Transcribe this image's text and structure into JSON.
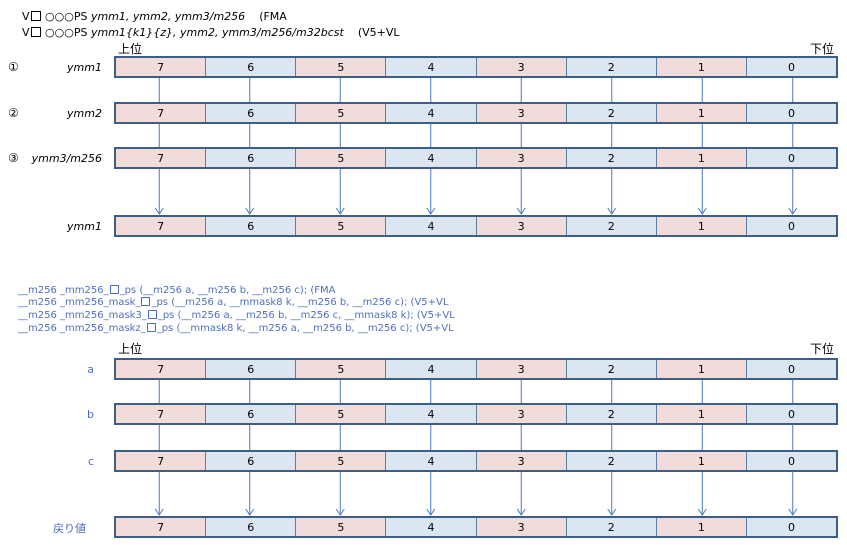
{
  "header1": {
    "prefix": "V",
    "circles": "○○○",
    "suffix": "PS",
    "operands": "ymm1, ymm2, ymm3/m256",
    "ext": "(FMA"
  },
  "header2": {
    "prefix": "V",
    "circles": "○○○",
    "suffix": "PS",
    "operands": "ymm1{k1}{z}, ymm2, ymm3/m256/m32bcst",
    "ext": "(V5+VL"
  },
  "high": "上位",
  "low": "下位",
  "cells": [
    "7",
    "6",
    "5",
    "4",
    "3",
    "2",
    "1",
    "0"
  ],
  "diagram1": {
    "rows": [
      {
        "num": "①",
        "label": "ymm1"
      },
      {
        "num": "②",
        "label": "ymm2"
      },
      {
        "num": "③",
        "label": "ymm3/m256"
      }
    ],
    "result_label": "ymm1"
  },
  "prototypes": [
    {
      "pre": "__m256  _mm256_",
      "post": "_ps  (__m256 a, __m256 b, __m256 c);   (FMA"
    },
    {
      "pre": "__m256  _mm256_mask_",
      "post": "_ps  (__m256 a, __mmask8 k, __m256 b, __m256 c);   (V5+VL"
    },
    {
      "pre": "__m256  _mm256_mask3_",
      "post": "_ps  (__m256 a, __m256 b, __m256 c, __mmask8 k);   (V5+VL"
    },
    {
      "pre": "__m256  _mm256_maskz_",
      "post": "_ps  (__mmask8 k, __m256 a, __m256 b, __m256 c);   (V5+VL"
    }
  ],
  "diagram2": {
    "rows": [
      {
        "label": "a"
      },
      {
        "label": "b"
      },
      {
        "label": "c"
      }
    ],
    "result_label": "戻り値"
  },
  "colors": {
    "pink": "#f2dcdb",
    "blue": "#dce6f1",
    "border": "#3d5f86",
    "arrow": "#4a7ab8",
    "proto_text": "#4f6fc0"
  }
}
